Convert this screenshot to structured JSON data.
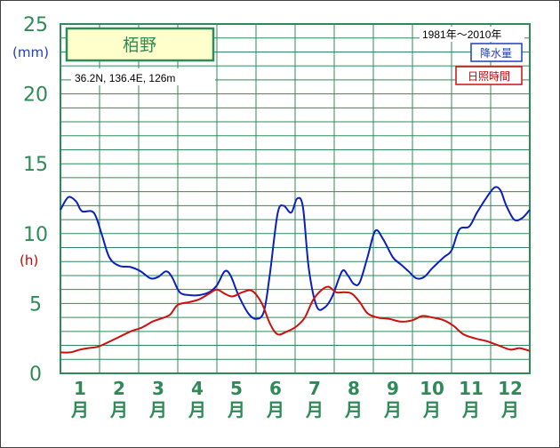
{
  "chart_data": {
    "type": "line",
    "station": "栢野",
    "location": "36.2N,  136.4E,  126m",
    "period": "1981年〜2010年",
    "y_ticks": [
      "0",
      "5",
      "10",
      "15",
      "20",
      "25"
    ],
    "y_unit_precip": "(mm)",
    "y_unit_sun": "(h)",
    "ylim": [
      0,
      25
    ],
    "categories": [
      {
        "num": "1",
        "suffix": "月"
      },
      {
        "num": "2",
        "suffix": "月"
      },
      {
        "num": "3",
        "suffix": "月"
      },
      {
        "num": "4",
        "suffix": "月"
      },
      {
        "num": "5",
        "suffix": "月"
      },
      {
        "num": "6",
        "suffix": "月"
      },
      {
        "num": "7",
        "suffix": "月"
      },
      {
        "num": "8",
        "suffix": "月"
      },
      {
        "num": "9",
        "suffix": "月"
      },
      {
        "num": "10",
        "suffix": "月"
      },
      {
        "num": "11",
        "suffix": "月"
      },
      {
        "num": "12",
        "suffix": "月"
      }
    ],
    "x_range": [
      0.5,
      12.5
    ],
    "grid": true,
    "series": [
      {
        "name": "降水量",
        "color": "#0a1fbf",
        "points": [
          [
            0.5,
            11.7
          ],
          [
            0.7,
            12.6
          ],
          [
            0.9,
            12.3
          ],
          [
            1.05,
            11.6
          ],
          [
            1.35,
            11.5
          ],
          [
            1.55,
            10.0
          ],
          [
            1.75,
            8.3
          ],
          [
            2.0,
            7.7
          ],
          [
            2.3,
            7.6
          ],
          [
            2.55,
            7.3
          ],
          [
            2.8,
            6.8
          ],
          [
            3.0,
            6.9
          ],
          [
            3.2,
            7.3
          ],
          [
            3.35,
            6.9
          ],
          [
            3.55,
            5.8
          ],
          [
            3.8,
            5.6
          ],
          [
            4.05,
            5.6
          ],
          [
            4.3,
            5.8
          ],
          [
            4.5,
            6.3
          ],
          [
            4.7,
            7.3
          ],
          [
            4.85,
            7.0
          ],
          [
            5.05,
            5.6
          ],
          [
            5.3,
            4.3
          ],
          [
            5.5,
            3.9
          ],
          [
            5.7,
            4.4
          ],
          [
            5.85,
            7.0
          ],
          [
            6.05,
            11.4
          ],
          [
            6.2,
            12.0
          ],
          [
            6.4,
            11.5
          ],
          [
            6.55,
            12.5
          ],
          [
            6.7,
            11.9
          ],
          [
            6.85,
            7.5
          ],
          [
            7.05,
            4.8
          ],
          [
            7.25,
            4.7
          ],
          [
            7.45,
            5.5
          ],
          [
            7.7,
            7.3
          ],
          [
            7.85,
            7.0
          ],
          [
            8.0,
            6.4
          ],
          [
            8.15,
            6.5
          ],
          [
            8.35,
            8.3
          ],
          [
            8.55,
            10.2
          ],
          [
            8.75,
            9.6
          ],
          [
            9.0,
            8.3
          ],
          [
            9.2,
            7.8
          ],
          [
            9.4,
            7.3
          ],
          [
            9.6,
            6.8
          ],
          [
            9.8,
            6.9
          ],
          [
            10.0,
            7.5
          ],
          [
            10.3,
            8.3
          ],
          [
            10.5,
            8.8
          ],
          [
            10.7,
            10.3
          ],
          [
            10.95,
            10.5
          ],
          [
            11.15,
            11.5
          ],
          [
            11.4,
            12.6
          ],
          [
            11.6,
            13.3
          ],
          [
            11.75,
            13.1
          ],
          [
            11.9,
            12.0
          ],
          [
            12.1,
            11.0
          ],
          [
            12.3,
            11.1
          ],
          [
            12.5,
            11.7
          ]
        ]
      },
      {
        "name": "日照時間",
        "color": "#cc1010",
        "points": [
          [
            0.5,
            1.5
          ],
          [
            0.75,
            1.5
          ],
          [
            1.0,
            1.7
          ],
          [
            1.2,
            1.8
          ],
          [
            1.45,
            1.9
          ],
          [
            1.7,
            2.2
          ],
          [
            2.0,
            2.6
          ],
          [
            2.3,
            3.0
          ],
          [
            2.6,
            3.3
          ],
          [
            2.85,
            3.7
          ],
          [
            3.05,
            3.9
          ],
          [
            3.3,
            4.2
          ],
          [
            3.5,
            4.9
          ],
          [
            3.8,
            5.1
          ],
          [
            4.05,
            5.3
          ],
          [
            4.3,
            5.7
          ],
          [
            4.5,
            6.0
          ],
          [
            4.7,
            5.7
          ],
          [
            4.9,
            5.5
          ],
          [
            5.15,
            5.8
          ],
          [
            5.4,
            5.9
          ],
          [
            5.65,
            5.0
          ],
          [
            5.85,
            3.6
          ],
          [
            6.05,
            2.8
          ],
          [
            6.3,
            3.0
          ],
          [
            6.55,
            3.4
          ],
          [
            6.75,
            4.0
          ],
          [
            6.95,
            5.2
          ],
          [
            7.15,
            5.9
          ],
          [
            7.35,
            6.2
          ],
          [
            7.55,
            5.8
          ],
          [
            7.75,
            5.8
          ],
          [
            7.95,
            5.7
          ],
          [
            8.15,
            5.1
          ],
          [
            8.35,
            4.3
          ],
          [
            8.6,
            4.0
          ],
          [
            8.9,
            3.9
          ],
          [
            9.2,
            3.7
          ],
          [
            9.5,
            3.8
          ],
          [
            9.75,
            4.1
          ],
          [
            10.0,
            4.0
          ],
          [
            10.3,
            3.8
          ],
          [
            10.55,
            3.4
          ],
          [
            10.8,
            2.8
          ],
          [
            11.1,
            2.5
          ],
          [
            11.4,
            2.3
          ],
          [
            11.7,
            2.0
          ],
          [
            12.0,
            1.7
          ],
          [
            12.25,
            1.8
          ],
          [
            12.5,
            1.6
          ]
        ]
      }
    ]
  }
}
